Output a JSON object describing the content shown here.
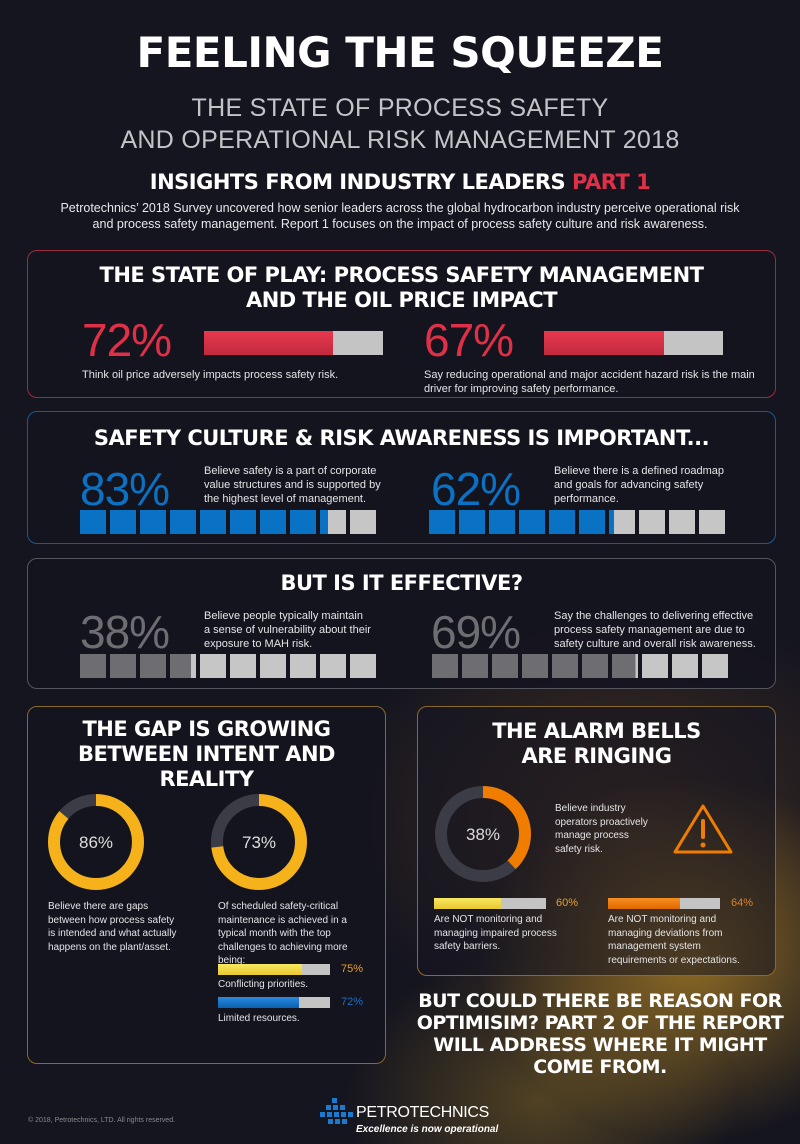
{
  "header": {
    "title": "FEELING THE SQUEEZE",
    "subtitle_line1": "THE STATE OF PROCESS SAFETY",
    "subtitle_line2": "AND OPERATIONAL RISK MANAGEMENT 2018",
    "insights": "INSIGHTS FROM INDUSTRY LEADERS",
    "part": "PART 1",
    "intro_line1": "Petrotechnics’ 2018 Survey uncovered how senior leaders across the global hydrocarbon industry perceive operational risk",
    "intro_line2": "and process safety management. Report 1 focuses on the impact of process safety culture and risk awareness."
  },
  "colors": {
    "red": "#e03048",
    "blue": "#0a72c4",
    "gray": "#6e6e72",
    "orange": "#f07d00",
    "yellow": "#f5b21a",
    "light": "#c6c6c6"
  },
  "state_of_play": {
    "title_line1": "THE STATE OF PLAY: PROCESS SAFETY MANAGEMENT",
    "title_line2": "AND THE OIL PRICE IMPACT",
    "stats": [
      {
        "label": "72%",
        "value": 72,
        "text": "Think oil price adversely impacts process safety risk."
      },
      {
        "label": "67%",
        "value": 67,
        "text_line1": "Say reducing operational and major accident hazard risk is the main",
        "text_line2": "driver for improving safety performance."
      }
    ]
  },
  "culture": {
    "title": "SAFETY CULTURE & RISK AWARENESS IS IMPORTANT...",
    "stats": [
      {
        "label": "83%",
        "value": 83,
        "l1": "Believe safety is a part of corporate",
        "l2": "value structures and is supported by",
        "l3": "the highest level of management."
      },
      {
        "label": "62%",
        "value": 62,
        "l1": "Believe there is a defined roadmap",
        "l2": "and goals for advancing safety",
        "l3": "performance."
      }
    ]
  },
  "effective": {
    "title": "BUT IS IT EFFECTIVE?",
    "stats": [
      {
        "label": "38%",
        "value": 38,
        "l1": "Believe people typically maintain",
        "l2": "a sense of vulnerability about their",
        "l3": "exposure to MAH risk."
      },
      {
        "label": "69%",
        "value": 69,
        "l1": "Say the challenges to delivering effective",
        "l2": "process safety management are due to",
        "l3": "safety culture and overall risk awareness."
      }
    ]
  },
  "gap": {
    "title_line1": "THE GAP IS GROWING",
    "title_line2": "BETWEEN INTENT AND REALITY",
    "donuts": [
      {
        "label": "86%",
        "value": 86,
        "l1": "Believe there are gaps",
        "l2": "between how process safety",
        "l3": "is intended and what actually",
        "l4": "happens on the plant/asset."
      },
      {
        "label": "73%",
        "value": 73,
        "l1": "Of scheduled safety-critical",
        "l2": "maintenance is achieved in a",
        "l3": "typical month with the top",
        "l4": "challenges to achieving more",
        "l5": "being:"
      }
    ],
    "challenges": [
      {
        "label": "75%",
        "value": 75,
        "text": "Conflicting priorities."
      },
      {
        "label": "72%",
        "value": 72,
        "text": "Limited resources."
      }
    ]
  },
  "alarm": {
    "title_line1": "THE ALARM BELLS",
    "title_line2": "ARE RINGING",
    "donut": {
      "label": "38%",
      "value": 38,
      "l1": "Believe industry",
      "l2": "operators proactively",
      "l3": "manage process",
      "l4": "safety risk."
    },
    "bars": [
      {
        "label": "60%",
        "value": 60,
        "l1": "Are NOT monitoring and",
        "l2": "managing impaired process",
        "l3": "safety barriers."
      },
      {
        "label": "64%",
        "value": 64,
        "l1": "Are NOT monitoring and",
        "l2": "managing deviations from",
        "l3": "management system",
        "l4": "requirements or expectations."
      }
    ]
  },
  "closing": {
    "l1": "BUT COULD THERE BE REASON FOR",
    "l2": "OPTIMISIM? PART 2 OF THE REPORT",
    "l3": "WILL ADDRESS WHERE IT MIGHT",
    "l4": "COME FROM."
  },
  "footer": {
    "copyright": "© 2018, Petrotechnics, LTD. All rights reserved.",
    "brand": "PETROTECHNICS",
    "tagline": "Excellence is now operational"
  }
}
